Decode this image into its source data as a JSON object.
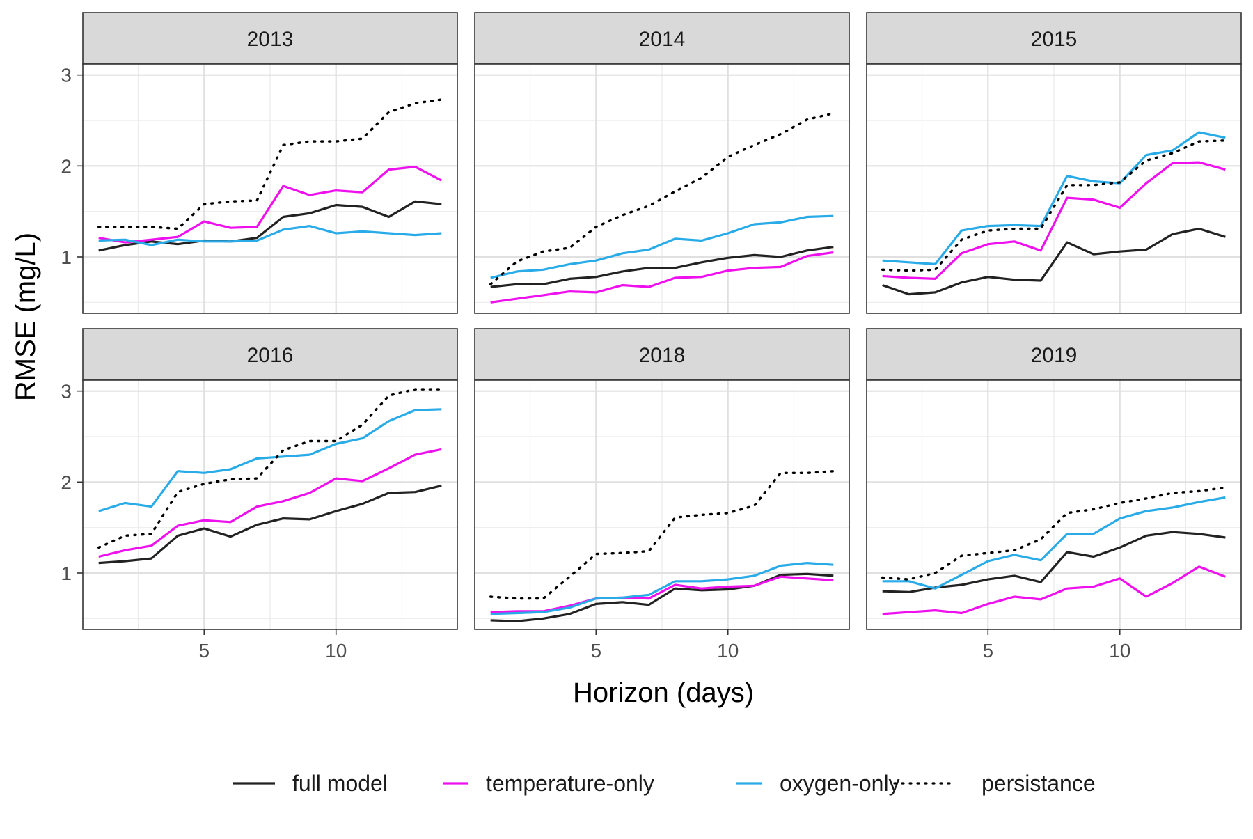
{
  "chart_data": {
    "type": "line",
    "xlabel": "Horizon (days)",
    "ylabel": "RMSE (mg/L)",
    "x": [
      1,
      2,
      3,
      4,
      5,
      6,
      7,
      8,
      9,
      10,
      11,
      12,
      13,
      14
    ],
    "xlim": [
      0.4,
      14.6
    ],
    "ylim": [
      0.38,
      3.12
    ],
    "x_ticks": [
      5,
      10
    ],
    "x_tick_labels": [
      "5",
      "10"
    ],
    "y_ticks": [
      1,
      2,
      3
    ],
    "y_tick_labels": [
      "1",
      "2",
      "3"
    ],
    "grid": true,
    "legend_position": "bottom",
    "legend": [
      {
        "key": "full",
        "label": "full model",
        "color": "#222222",
        "style": "solid"
      },
      {
        "key": "temp",
        "label": "temperature-only",
        "color": "#ee11ee",
        "style": "solid"
      },
      {
        "key": "oxy",
        "label": "oxygen-only",
        "color": "#29abe8",
        "style": "solid"
      },
      {
        "key": "persist",
        "label": "persistance",
        "color": "#000000",
        "style": "dotted"
      }
    ],
    "panels": [
      {
        "title": "2013",
        "series": [
          {
            "key": "full",
            "values": [
              1.07,
              1.13,
              1.17,
              1.14,
              1.18,
              1.17,
              1.21,
              1.44,
              1.48,
              1.57,
              1.55,
              1.44,
              1.61,
              1.58
            ]
          },
          {
            "key": "temp",
            "values": [
              1.21,
              1.16,
              1.19,
              1.22,
              1.39,
              1.32,
              1.33,
              1.78,
              1.68,
              1.73,
              1.71,
              1.96,
              1.99,
              1.84
            ]
          },
          {
            "key": "oxy",
            "values": [
              1.18,
              1.19,
              1.13,
              1.19,
              1.17,
              1.17,
              1.18,
              1.3,
              1.34,
              1.26,
              1.28,
              1.26,
              1.24,
              1.26
            ]
          },
          {
            "key": "persist",
            "values": [
              1.33,
              1.33,
              1.33,
              1.31,
              1.58,
              1.61,
              1.62,
              2.23,
              2.27,
              2.27,
              2.3,
              2.59,
              2.69,
              2.73
            ]
          }
        ]
      },
      {
        "title": "2014",
        "series": [
          {
            "key": "full",
            "values": [
              0.67,
              0.7,
              0.7,
              0.76,
              0.78,
              0.84,
              0.88,
              0.88,
              0.94,
              0.99,
              1.02,
              1.0,
              1.07,
              1.11
            ]
          },
          {
            "key": "temp",
            "values": [
              0.5,
              0.54,
              0.58,
              0.62,
              0.61,
              0.69,
              0.67,
              0.77,
              0.78,
              0.85,
              0.88,
              0.89,
              1.01,
              1.05
            ]
          },
          {
            "key": "oxy",
            "values": [
              0.77,
              0.84,
              0.86,
              0.92,
              0.96,
              1.04,
              1.08,
              1.2,
              1.18,
              1.26,
              1.36,
              1.38,
              1.44,
              1.45
            ]
          },
          {
            "key": "persist",
            "values": [
              0.7,
              0.95,
              1.06,
              1.1,
              1.33,
              1.46,
              1.56,
              1.72,
              1.87,
              2.1,
              2.23,
              2.35,
              2.51,
              2.58
            ]
          }
        ]
      },
      {
        "title": "2015",
        "series": [
          {
            "key": "full",
            "values": [
              0.69,
              0.59,
              0.61,
              0.72,
              0.78,
              0.75,
              0.74,
              1.16,
              1.03,
              1.06,
              1.08,
              1.25,
              1.31,
              1.22
            ]
          },
          {
            "key": "temp",
            "values": [
              0.79,
              0.77,
              0.76,
              1.04,
              1.14,
              1.17,
              1.07,
              1.65,
              1.63,
              1.54,
              1.81,
              2.03,
              2.04,
              1.96
            ]
          },
          {
            "key": "oxy",
            "values": [
              0.96,
              0.94,
              0.92,
              1.29,
              1.34,
              1.35,
              1.34,
              1.89,
              1.83,
              1.81,
              2.12,
              2.17,
              2.37,
              2.31
            ]
          },
          {
            "key": "persist",
            "values": [
              0.86,
              0.85,
              0.86,
              1.19,
              1.29,
              1.31,
              1.31,
              1.79,
              1.79,
              1.82,
              2.06,
              2.14,
              2.27,
              2.28
            ]
          }
        ]
      },
      {
        "title": "2016",
        "series": [
          {
            "key": "full",
            "values": [
              1.11,
              1.13,
              1.16,
              1.41,
              1.49,
              1.4,
              1.53,
              1.6,
              1.59,
              1.68,
              1.76,
              1.88,
              1.89,
              1.96
            ]
          },
          {
            "key": "temp",
            "values": [
              1.18,
              1.25,
              1.3,
              1.52,
              1.58,
              1.56,
              1.73,
              1.79,
              1.88,
              2.04,
              2.01,
              2.15,
              2.3,
              2.36
            ]
          },
          {
            "key": "oxy",
            "values": [
              1.68,
              1.77,
              1.73,
              2.12,
              2.1,
              2.14,
              2.26,
              2.28,
              2.3,
              2.42,
              2.48,
              2.67,
              2.79,
              2.8
            ]
          },
          {
            "key": "persist",
            "values": [
              1.28,
              1.41,
              1.43,
              1.89,
              1.98,
              2.03,
              2.04,
              2.35,
              2.45,
              2.45,
              2.63,
              2.95,
              3.02,
              3.02
            ]
          }
        ]
      },
      {
        "title": "2018",
        "series": [
          {
            "key": "full",
            "values": [
              0.48,
              0.47,
              0.5,
              0.55,
              0.66,
              0.68,
              0.65,
              0.83,
              0.81,
              0.82,
              0.86,
              0.98,
              0.99,
              0.97
            ]
          },
          {
            "key": "temp",
            "values": [
              0.57,
              0.58,
              0.58,
              0.64,
              0.72,
              0.73,
              0.72,
              0.87,
              0.83,
              0.85,
              0.86,
              0.96,
              0.94,
              0.92
            ]
          },
          {
            "key": "oxy",
            "values": [
              0.55,
              0.56,
              0.57,
              0.62,
              0.72,
              0.73,
              0.76,
              0.91,
              0.91,
              0.93,
              0.97,
              1.08,
              1.11,
              1.09
            ]
          },
          {
            "key": "persist",
            "values": [
              0.74,
              0.72,
              0.72,
              0.96,
              1.21,
              1.22,
              1.24,
              1.61,
              1.64,
              1.66,
              1.74,
              2.1,
              2.1,
              2.12
            ]
          }
        ]
      },
      {
        "title": "2019",
        "series": [
          {
            "key": "full",
            "values": [
              0.8,
              0.79,
              0.84,
              0.87,
              0.93,
              0.97,
              0.9,
              1.23,
              1.18,
              1.28,
              1.41,
              1.45,
              1.43,
              1.39
            ]
          },
          {
            "key": "temp",
            "values": [
              0.55,
              0.57,
              0.59,
              0.56,
              0.66,
              0.74,
              0.71,
              0.83,
              0.85,
              0.94,
              0.74,
              0.89,
              1.07,
              0.96
            ]
          },
          {
            "key": "oxy",
            "values": [
              0.91,
              0.91,
              0.83,
              0.98,
              1.13,
              1.2,
              1.14,
              1.43,
              1.43,
              1.6,
              1.68,
              1.72,
              1.78,
              1.83
            ]
          },
          {
            "key": "persist",
            "values": [
              0.95,
              0.93,
              1.0,
              1.19,
              1.22,
              1.25,
              1.37,
              1.66,
              1.7,
              1.77,
              1.82,
              1.88,
              1.9,
              1.94
            ]
          }
        ]
      }
    ]
  }
}
